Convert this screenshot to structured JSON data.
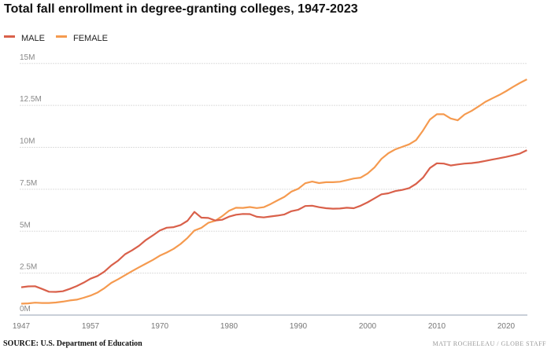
{
  "chart_data": {
    "type": "line",
    "title": "Total fall enrollment in degree-granting colleges, 1947-2023",
    "xlabel": "",
    "ylabel": "",
    "ylim": [
      0,
      15000000
    ],
    "y_ticks": [
      "0M",
      "2.5M",
      "5M",
      "7.5M",
      "10M",
      "12.5M",
      "15M"
    ],
    "x_ticks": [
      "1947",
      "1957",
      "1970",
      "1980",
      "1990",
      "2000",
      "2010",
      "2020"
    ],
    "grid": "horizontal dotted",
    "legend": "top-left",
    "x": [
      1947,
      1948,
      1949,
      1950,
      1951,
      1952,
      1953,
      1954,
      1955,
      1956,
      1957,
      1959,
      1961,
      1963,
      1964,
      1965,
      1966,
      1967,
      1968,
      1969,
      1970,
      1971,
      1972,
      1973,
      1974,
      1975,
      1976,
      1977,
      1978,
      1979,
      1980,
      1981,
      1982,
      1983,
      1984,
      1985,
      1986,
      1987,
      1988,
      1989,
      1990,
      1991,
      1992,
      1993,
      1994,
      1995,
      1996,
      1997,
      1998,
      1999,
      2000,
      2001,
      2002,
      2003,
      2004,
      2005,
      2006,
      2007,
      2008,
      2009,
      2010,
      2011,
      2012,
      2013,
      2014,
      2015,
      2016,
      2017,
      2018,
      2019,
      2020,
      2021,
      2022,
      2023
    ],
    "series": [
      {
        "name": "MALE",
        "color": "#d9604a",
        "values": [
          1.66,
          1.71,
          1.72,
          1.56,
          1.39,
          1.38,
          1.42,
          1.56,
          1.73,
          1.93,
          2.17,
          2.33,
          2.59,
          2.96,
          3.25,
          3.63,
          3.86,
          4.13,
          4.48,
          4.75,
          5.04,
          5.21,
          5.24,
          5.37,
          5.62,
          6.15,
          5.81,
          5.79,
          5.64,
          5.68,
          5.87,
          5.98,
          6.03,
          6.02,
          5.86,
          5.82,
          5.88,
          5.93,
          6.0,
          6.19,
          6.28,
          6.5,
          6.52,
          6.43,
          6.37,
          6.34,
          6.35,
          6.4,
          6.37,
          6.52,
          6.72,
          6.96,
          7.2,
          7.26,
          7.39,
          7.46,
          7.57,
          7.82,
          8.19,
          8.77,
          9.05,
          9.03,
          8.92,
          8.98,
          9.03,
          9.06,
          9.11,
          9.19,
          9.27,
          9.35,
          9.43,
          9.52,
          9.63,
          9.83
        ]
      },
      {
        "name": "FEMALE",
        "color": "#f59a4f",
        "values": [
          0.68,
          0.7,
          0.74,
          0.72,
          0.72,
          0.75,
          0.8,
          0.87,
          0.92,
          1.03,
          1.16,
          1.34,
          1.6,
          1.92,
          2.14,
          2.38,
          2.62,
          2.85,
          3.07,
          3.29,
          3.54,
          3.73,
          3.95,
          4.24,
          4.6,
          5.04,
          5.2,
          5.5,
          5.62,
          5.89,
          6.22,
          6.4,
          6.39,
          6.44,
          6.38,
          6.43,
          6.62,
          6.84,
          7.05,
          7.36,
          7.53,
          7.86,
          7.96,
          7.87,
          7.92,
          7.92,
          7.95,
          8.04,
          8.14,
          8.19,
          8.44,
          8.8,
          9.31,
          9.65,
          9.88,
          10.03,
          10.18,
          10.43,
          11.0,
          11.66,
          11.97,
          11.97,
          11.72,
          11.61,
          11.96,
          12.17,
          12.43,
          12.71,
          12.92,
          13.12,
          13.35,
          13.6,
          13.84,
          14.05
        ]
      }
    ],
    "value_unit": "millions"
  },
  "footer": {
    "source": "SOURCE: U.S. Department of Education",
    "credit": "MATT ROCHELEAU / GLOBE STAFF"
  }
}
